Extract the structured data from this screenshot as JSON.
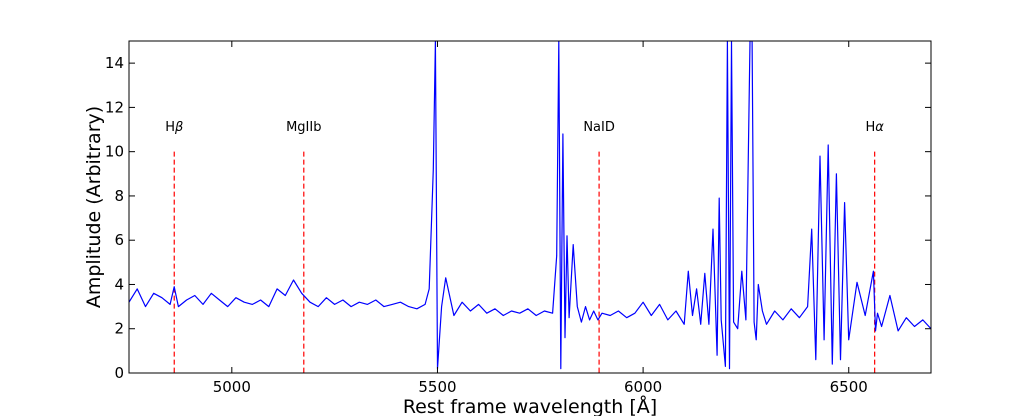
{
  "chart_data": {
    "type": "line",
    "title": "",
    "xlabel": "Rest frame wavelength [Å]",
    "ylabel": "Amplitude (Arbitrary)",
    "xlim": [
      4750,
      6700
    ],
    "ylim": [
      0,
      15
    ],
    "xticks": [
      5000,
      5500,
      6000,
      6500
    ],
    "yticks": [
      0,
      2,
      4,
      6,
      8,
      10,
      12,
      14
    ],
    "grid": false,
    "legend": "none",
    "series": [
      {
        "color": "#0000ff",
        "x": [
          4750,
          4770,
          4790,
          4810,
          4830,
          4850,
          4860,
          4870,
          4890,
          4910,
          4930,
          4950,
          4970,
          4990,
          5010,
          5030,
          5050,
          5070,
          5090,
          5110,
          5130,
          5150,
          5170,
          5190,
          5210,
          5230,
          5250,
          5270,
          5290,
          5310,
          5330,
          5350,
          5370,
          5390,
          5410,
          5430,
          5450,
          5470,
          5480,
          5490,
          5495,
          5500,
          5510,
          5520,
          5540,
          5560,
          5580,
          5600,
          5620,
          5640,
          5660,
          5680,
          5700,
          5720,
          5740,
          5760,
          5780,
          5790,
          5795,
          5800,
          5805,
          5810,
          5815,
          5820,
          5830,
          5840,
          5850,
          5860,
          5870,
          5880,
          5890,
          5900,
          5920,
          5940,
          5960,
          5980,
          6000,
          6020,
          6040,
          6060,
          6080,
          6100,
          6110,
          6120,
          6130,
          6140,
          6150,
          6160,
          6170,
          6180,
          6185,
          6190,
          6200,
          6205,
          6210,
          6215,
          6220,
          6230,
          6240,
          6250,
          6260,
          6265,
          6270,
          6275,
          6280,
          6290,
          6300,
          6320,
          6340,
          6360,
          6380,
          6400,
          6410,
          6420,
          6430,
          6440,
          6450,
          6460,
          6470,
          6480,
          6490,
          6500,
          6520,
          6540,
          6560,
          6565,
          6570,
          6580,
          6600,
          6620,
          6640,
          6660,
          6680,
          6700
        ],
        "values": [
          3.2,
          3.8,
          3.0,
          3.6,
          3.4,
          3.1,
          3.9,
          3.0,
          3.3,
          3.5,
          3.1,
          3.6,
          3.3,
          3.0,
          3.4,
          3.2,
          3.1,
          3.3,
          3.0,
          3.8,
          3.5,
          4.2,
          3.6,
          3.2,
          3.0,
          3.4,
          3.1,
          3.3,
          3.0,
          3.2,
          3.1,
          3.3,
          3.0,
          3.1,
          3.2,
          3.0,
          2.9,
          3.1,
          3.8,
          9.2,
          15,
          0.2,
          3.0,
          4.3,
          2.6,
          3.2,
          2.8,
          3.1,
          2.7,
          2.9,
          2.6,
          2.8,
          2.7,
          2.9,
          2.6,
          2.8,
          2.7,
          5.3,
          15,
          0.2,
          10.8,
          1.6,
          6.2,
          2.5,
          5.8,
          3.0,
          2.3,
          3.0,
          2.4,
          2.8,
          2.4,
          2.7,
          2.6,
          2.8,
          2.5,
          2.7,
          3.2,
          2.6,
          3.1,
          2.4,
          2.8,
          2.2,
          4.6,
          2.6,
          3.8,
          2.2,
          4.5,
          2.2,
          6.5,
          0.8,
          7.9,
          2.4,
          0.3,
          15,
          0.2,
          15,
          2.3,
          2.0,
          4.6,
          2.4,
          15,
          15,
          2.3,
          1.5,
          4.0,
          2.8,
          2.2,
          2.8,
          2.4,
          2.9,
          2.5,
          3.0,
          6.5,
          0.6,
          9.8,
          1.5,
          10.3,
          0.4,
          9.0,
          0.6,
          7.7,
          1.5,
          4.1,
          2.6,
          4.6,
          1.9,
          2.7,
          2.1,
          3.5,
          1.9,
          2.5,
          2.1,
          2.4,
          2.0
        ]
      }
    ],
    "annotations": [
      {
        "text": "H",
        "greek": "β",
        "x": 4860
      },
      {
        "text": "MgIIb",
        "greek": "",
        "x": 5175
      },
      {
        "text": "NaID",
        "greek": "",
        "x": 5893
      },
      {
        "text": "H",
        "greek": "α",
        "x": 6563
      }
    ],
    "annotation_line_color": "#ff0000",
    "annotation_line_top": 10
  }
}
